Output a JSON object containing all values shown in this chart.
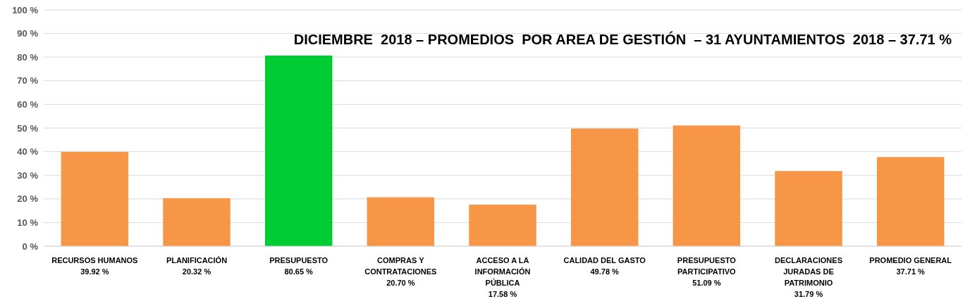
{
  "chart_data": {
    "type": "bar",
    "title": "DICIEMBRE  2018 – PROMEDIOS  POR AREA DE GESTIÓN  – 31 AYUNTAMIENTOS  2018 – 37.71 %",
    "categories": [
      "RECURSOS HUMANOS\n39.92 %",
      "PLANIFICACIÓN\n20.32 %",
      "PRESUPUESTO\n80.65 %",
      "COMPRAS Y\nCONTRATACIONES\n20.70 %",
      "ACCESO A LA\nINFORMACIÓN\nPÚBLICA\n17.58 %",
      "CALIDAD DEL GASTO\n49.78 %",
      "PRESUPUESTO\nPARTICIPATIVO\n51.09 %",
      "DECLARACIONES\nJURADAS DE\nPATRIMONIO\n31.79 %",
      "PROMEDIO GENERAL\n37.71 %"
    ],
    "values": [
      39.92,
      20.32,
      80.65,
      20.7,
      17.58,
      49.78,
      51.09,
      31.79,
      37.71
    ],
    "colors": [
      "#f79646",
      "#f79646",
      "#00cc33",
      "#f79646",
      "#f79646",
      "#f79646",
      "#f79646",
      "#f79646",
      "#f79646"
    ],
    "ylim": [
      0,
      100
    ],
    "yticks": [
      {
        "value": 0,
        "label": "0 %"
      },
      {
        "value": 10,
        "label": "10 %"
      },
      {
        "value": 20,
        "label": "20 %"
      },
      {
        "value": 30,
        "label": "30 %"
      },
      {
        "value": 40,
        "label": "40 %"
      },
      {
        "value": 50,
        "label": "50 %"
      },
      {
        "value": 60,
        "label": "60 %"
      },
      {
        "value": 70,
        "label": "70 %"
      },
      {
        "value": 80,
        "label": "80 %"
      },
      {
        "value": 90,
        "label": "90 %"
      },
      {
        "value": 100,
        "label": "100 %"
      }
    ],
    "grid": "y"
  }
}
